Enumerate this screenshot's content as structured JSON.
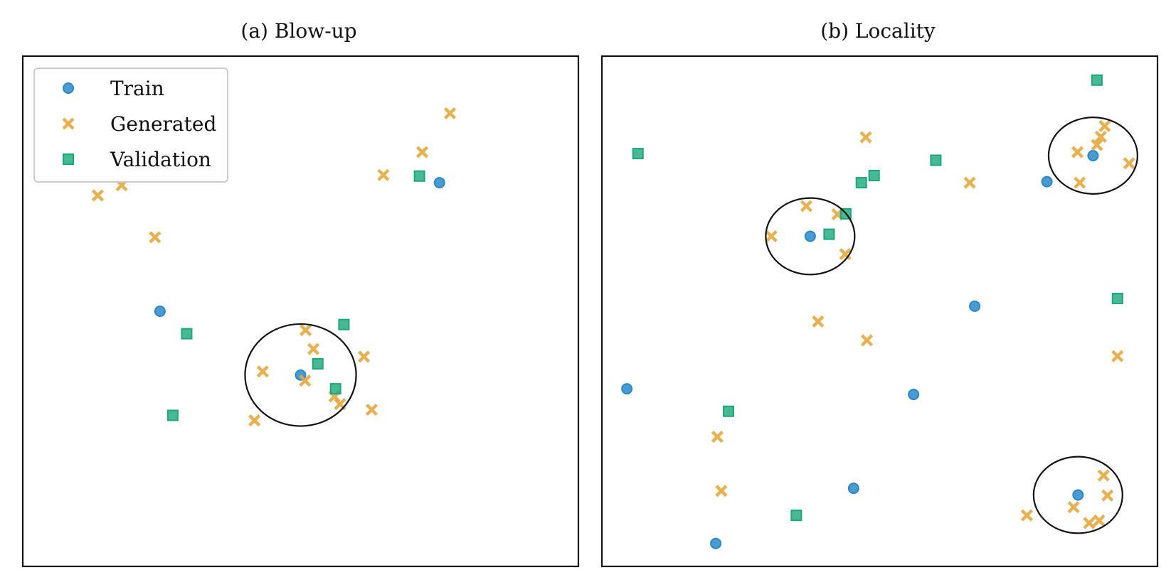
{
  "chart_data": [
    {
      "type": "scatter",
      "title": "(a) Blow-up",
      "xlim": [
        0,
        1
      ],
      "ylim": [
        0,
        1
      ],
      "grid": false,
      "legend": "top-left",
      "series": [
        {
          "name": "Train",
          "marker": "circle",
          "color": "#2b88c8",
          "points": [
            [
              0.5,
              0.375
            ],
            [
              0.247,
              0.5
            ],
            [
              0.75,
              0.752
            ]
          ]
        },
        {
          "name": "Generated",
          "marker": "x",
          "color": "#e3a83f",
          "points": [
            [
              0.135,
              0.727
            ],
            [
              0.178,
              0.747
            ],
            [
              0.238,
              0.645
            ],
            [
              0.432,
              0.382
            ],
            [
              0.417,
              0.286
            ],
            [
              0.509,
              0.463
            ],
            [
              0.523,
              0.426
            ],
            [
              0.508,
              0.364
            ],
            [
              0.561,
              0.333
            ],
            [
              0.571,
              0.318
            ],
            [
              0.614,
              0.411
            ],
            [
              0.628,
              0.307
            ],
            [
              0.649,
              0.767
            ],
            [
              0.719,
              0.812
            ],
            [
              0.769,
              0.888
            ]
          ]
        },
        {
          "name": "Validation",
          "marker": "square",
          "color": "#1aa779",
          "points": [
            [
              0.295,
              0.456
            ],
            [
              0.27,
              0.296
            ],
            [
              0.531,
              0.397
            ],
            [
              0.578,
              0.474
            ],
            [
              0.563,
              0.348
            ],
            [
              0.714,
              0.765
            ]
          ]
        }
      ],
      "circles": [
        {
          "cx": 0.5,
          "cy": 0.375,
          "rx": 0.1,
          "ry": 0.1
        }
      ]
    },
    {
      "type": "scatter",
      "title": "(b) Locality",
      "xlim": [
        0,
        1
      ],
      "ylim": [
        0,
        1
      ],
      "grid": false,
      "series": [
        {
          "name": "Train",
          "marker": "circle",
          "color": "#2b88c8",
          "points": [
            [
              0.045,
              0.348
            ],
            [
              0.205,
              0.045
            ],
            [
              0.375,
              0.647
            ],
            [
              0.453,
              0.153
            ],
            [
              0.561,
              0.337
            ],
            [
              0.671,
              0.51
            ],
            [
              0.801,
              0.754
            ],
            [
              0.884,
              0.805
            ],
            [
              0.857,
              0.14
            ]
          ]
        },
        {
          "name": "Generated",
          "marker": "x",
          "color": "#e3a83f",
          "points": [
            [
              0.305,
              0.647
            ],
            [
              0.368,
              0.706
            ],
            [
              0.424,
              0.69
            ],
            [
              0.438,
              0.612
            ],
            [
              0.475,
              0.841
            ],
            [
              0.389,
              0.48
            ],
            [
              0.477,
              0.443
            ],
            [
              0.662,
              0.752
            ],
            [
              0.208,
              0.254
            ],
            [
              0.215,
              0.148
            ],
            [
              0.765,
              0.1
            ],
            [
              0.856,
              0.812
            ],
            [
              0.86,
              0.752
            ],
            [
              0.891,
              0.826
            ],
            [
              0.898,
              0.842
            ],
            [
              0.905,
              0.863
            ],
            [
              0.949,
              0.79
            ],
            [
              0.928,
              0.412
            ],
            [
              0.903,
              0.178
            ],
            [
              0.91,
              0.139
            ],
            [
              0.849,
              0.116
            ],
            [
              0.877,
              0.085
            ],
            [
              0.895,
              0.09
            ]
          ]
        },
        {
          "name": "Validation",
          "marker": "square",
          "color": "#1aa779",
          "points": [
            [
              0.065,
              0.809
            ],
            [
              0.228,
              0.304
            ],
            [
              0.35,
              0.1
            ],
            [
              0.409,
              0.651
            ],
            [
              0.439,
              0.691
            ],
            [
              0.467,
              0.752
            ],
            [
              0.49,
              0.766
            ],
            [
              0.601,
              0.796
            ],
            [
              0.891,
              0.953
            ],
            [
              0.928,
              0.525
            ]
          ]
        }
      ],
      "circles": [
        {
          "cx": 0.375,
          "cy": 0.647,
          "rx": 0.08,
          "ry": 0.075
        },
        {
          "cx": 0.884,
          "cy": 0.805,
          "rx": 0.08,
          "ry": 0.075
        },
        {
          "cx": 0.857,
          "cy": 0.14,
          "rx": 0.08,
          "ry": 0.075
        }
      ]
    }
  ]
}
